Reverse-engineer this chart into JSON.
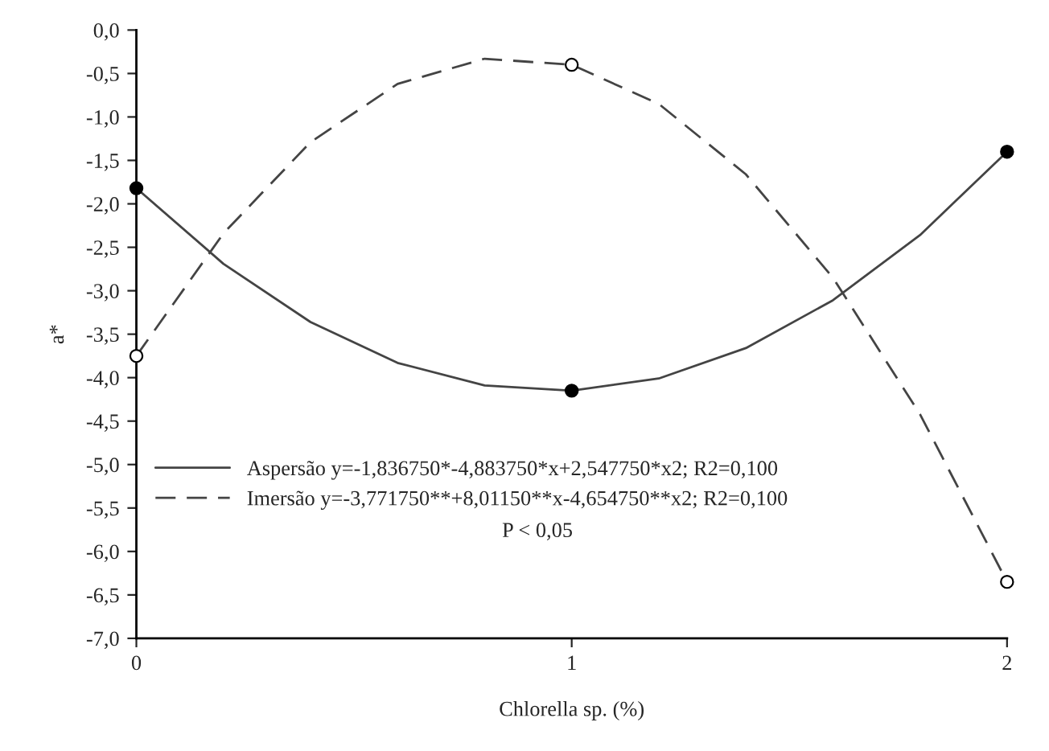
{
  "chart_data": {
    "type": "line",
    "xlabel": "Chlorella sp. (%)",
    "ylabel": "a*",
    "xlim": [
      0,
      2
    ],
    "xticks": [
      0,
      1,
      2
    ],
    "ylim": [
      -7,
      0
    ],
    "yticks": [
      {
        "value": 0,
        "label": "0,0"
      },
      {
        "value": -0.5,
        "label": "-0,5"
      },
      {
        "value": -1,
        "label": "-1,0"
      },
      {
        "value": -1.5,
        "label": "-1,5"
      },
      {
        "value": -2,
        "label": "-2,0"
      },
      {
        "value": -2.5,
        "label": "-2,5"
      },
      {
        "value": -3,
        "label": "-3,0"
      },
      {
        "value": -3.5,
        "label": "-3,5"
      },
      {
        "value": -4,
        "label": "-4,0"
      },
      {
        "value": -4.5,
        "label": "-4,5"
      },
      {
        "value": -5,
        "label": "-5,0"
      },
      {
        "value": -5.5,
        "label": "-5,5"
      },
      {
        "value": -6,
        "label": "-6,0"
      },
      {
        "value": -6.5,
        "label": "-6,5"
      },
      {
        "value": -7,
        "label": "-7,0"
      }
    ],
    "grid": false,
    "legend": "bottom left",
    "annotations": [
      "P < 0,05"
    ],
    "series": [
      {
        "type": "scatter",
        "color": "#000000",
        "marker": "circle",
        "x": [
          0,
          1,
          2
        ],
        "values": [
          -1.82,
          -4.15,
          -1.4
        ]
      },
      {
        "name": "Aspersão y=-1,836750*-4,883750*x+2,547750*x2; R2=0,100",
        "color": "#444444",
        "line_style": "solid",
        "x": [
          0,
          0.2,
          0.4,
          0.6,
          0.8,
          1,
          1.2,
          1.4,
          1.6,
          1.8,
          2
        ],
        "values": [
          -1.82,
          -2.69,
          -3.36,
          -3.83,
          -4.09,
          -4.15,
          -4.01,
          -3.66,
          -3.11,
          -2.36,
          -1.4
        ]
      },
      {
        "type": "scatter",
        "color": "#ffffff",
        "marker": "circle",
        "x": [
          0,
          1,
          2
        ],
        "values": [
          -3.75,
          -0.4,
          -6.35
        ]
      },
      {
        "name": "Imersão y=-3,771750**+8,01150**x-4,654750**x2; R2=0,100",
        "color": "#444444",
        "line_style": "dashed",
        "x": [
          0,
          0.2,
          0.4,
          0.6,
          0.8,
          1,
          1.2,
          1.4,
          1.6,
          1.8,
          2
        ],
        "values": [
          -3.75,
          -2.34,
          -1.29,
          -0.62,
          -0.33,
          -0.4,
          -0.85,
          -1.66,
          -2.85,
          -4.42,
          -6.35
        ]
      }
    ]
  }
}
